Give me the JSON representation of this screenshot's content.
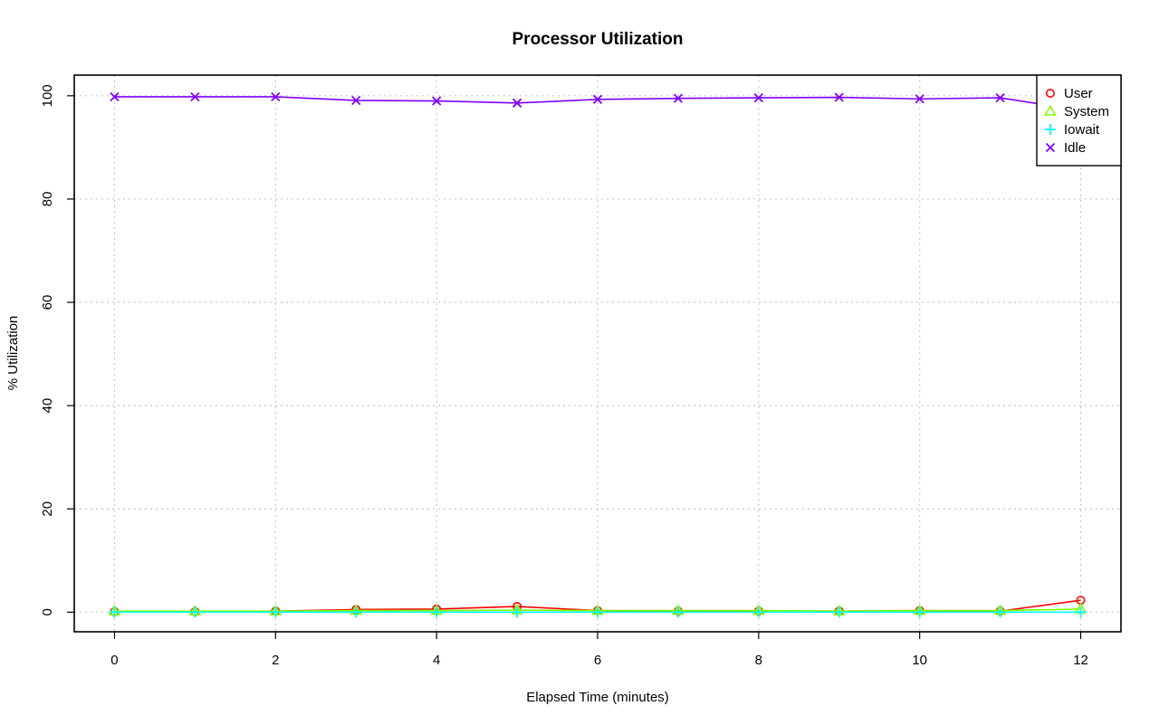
{
  "chart_data": {
    "type": "line",
    "title": "Processor Utilization",
    "xlabel": "Elapsed Time (minutes)",
    "ylabel": "% Utilization",
    "xlim": [
      -0.5,
      12.5
    ],
    "ylim": [
      -3.8,
      104
    ],
    "xticks": [
      0,
      2,
      4,
      6,
      8,
      10,
      12
    ],
    "yticks": [
      0,
      20,
      40,
      60,
      80,
      100
    ],
    "grid": true,
    "legend_position": "top-right",
    "x": [
      0,
      1,
      2,
      3,
      4,
      5,
      6,
      7,
      8,
      9,
      10,
      11,
      12
    ],
    "series": [
      {
        "name": "User",
        "color": "#ff0000",
        "marker": "circle",
        "values": [
          0.1,
          0.1,
          0.2,
          0.5,
          0.6,
          1.1,
          0.3,
          0.2,
          0.2,
          0.2,
          0.3,
          0.2,
          2.3
        ]
      },
      {
        "name": "System",
        "color": "#80ff00",
        "marker": "triangle",
        "values": [
          0.2,
          0.2,
          0.2,
          0.3,
          0.3,
          0.4,
          0.3,
          0.3,
          0.3,
          0.2,
          0.3,
          0.3,
          0.6
        ]
      },
      {
        "name": "Iowait",
        "color": "#00ffff",
        "marker": "plus",
        "values": [
          0,
          0,
          0,
          0,
          0,
          0,
          0,
          0,
          0,
          0,
          0,
          0,
          0
        ]
      },
      {
        "name": "Idle",
        "color": "#8000ff",
        "marker": "cross",
        "values": [
          99.8,
          99.8,
          99.8,
          99.1,
          99.0,
          98.6,
          99.3,
          99.5,
          99.6,
          99.7,
          99.4,
          99.6,
          97.2
        ]
      }
    ]
  }
}
